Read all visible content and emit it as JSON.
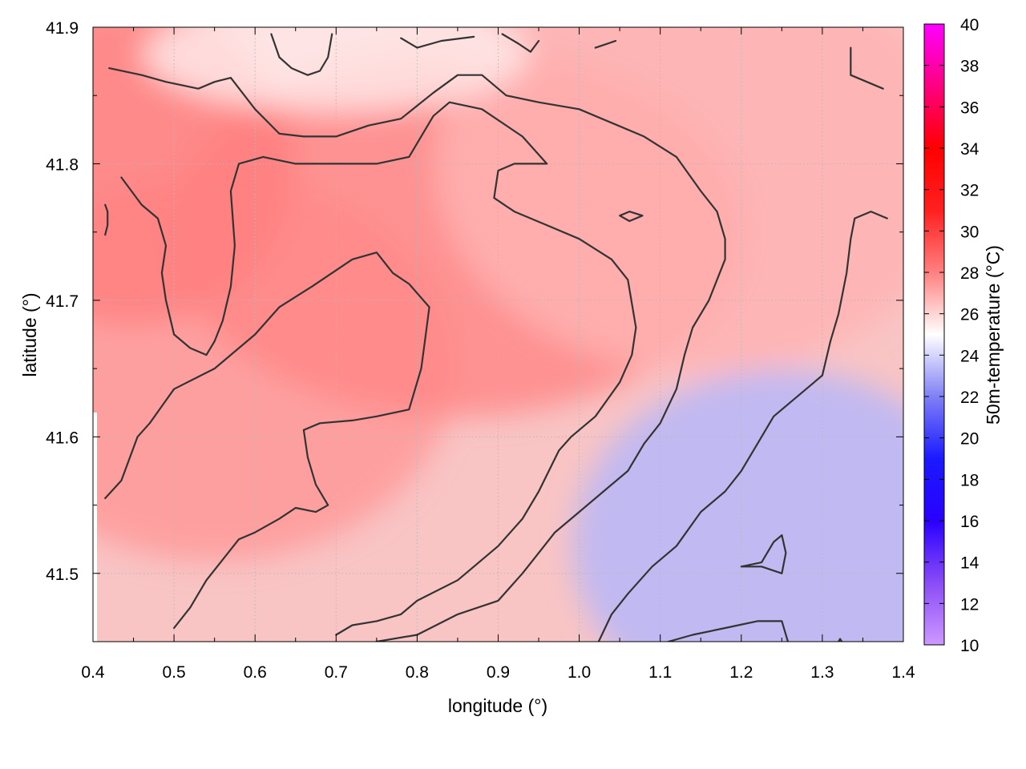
{
  "chart_data": {
    "type": "heatmap",
    "title": "",
    "xlabel": "longitude (°)",
    "ylabel": "latitude (°)",
    "colorbar_label": "50m-temperature (°C)",
    "xlim": [
      0.4,
      1.4
    ],
    "ylim": [
      41.45,
      41.9
    ],
    "x_ticks": [
      "0.4",
      "0.5",
      "0.6",
      "0.7",
      "0.8",
      "0.9",
      "1.0",
      "1.1",
      "1.2",
      "1.3",
      "1.4"
    ],
    "y_ticks": [
      "41.5",
      "41.6",
      "41.7",
      "41.8",
      "41.9"
    ],
    "colorbar_range": [
      10,
      40
    ],
    "colorbar_ticks": [
      "10",
      "12",
      "14",
      "16",
      "18",
      "20",
      "22",
      "24",
      "26",
      "28",
      "30",
      "32",
      "34",
      "36",
      "38",
      "40"
    ],
    "colormap": [
      {
        "value": 10,
        "color": "#cc99ff"
      },
      {
        "value": 13,
        "color": "#8a4cf5"
      },
      {
        "value": 16,
        "color": "#2a00ff"
      },
      {
        "value": 19,
        "color": "#1a1aff"
      },
      {
        "value": 22,
        "color": "#8080f5"
      },
      {
        "value": 25,
        "color": "#ffffff"
      },
      {
        "value": 28,
        "color": "#ff8080"
      },
      {
        "value": 31,
        "color": "#ff2020"
      },
      {
        "value": 34,
        "color": "#ff0000"
      },
      {
        "value": 37,
        "color": "#ff0080"
      },
      {
        "value": 40,
        "color": "#ff00ff"
      }
    ],
    "grid": true,
    "field_levels": [
      {
        "lon": 0.55,
        "lat": 41.65,
        "temp": 27.4
      },
      {
        "lon": 0.85,
        "lat": 41.75,
        "temp": 27.8
      },
      {
        "lon": 0.45,
        "lat": 41.8,
        "temp": 28.0
      },
      {
        "lon": 1.15,
        "lat": 41.8,
        "temp": 26.8
      },
      {
        "lon": 1.25,
        "lat": 41.52,
        "temp": 23.3
      },
      {
        "lon": 0.7,
        "lat": 41.88,
        "temp": 25.5
      }
    ],
    "contours": [
      {
        "id": "c-outer-west",
        "points": [
          [
            0.415,
            41.555
          ],
          [
            0.435,
            41.568
          ],
          [
            0.455,
            41.6
          ],
          [
            0.47,
            41.61
          ],
          [
            0.5,
            41.635
          ],
          [
            0.55,
            41.65
          ],
          [
            0.6,
            41.675
          ],
          [
            0.63,
            41.695
          ],
          [
            0.67,
            41.71
          ],
          [
            0.72,
            41.73
          ],
          [
            0.75,
            41.735
          ],
          [
            0.77,
            41.72
          ],
          [
            0.79,
            41.712
          ],
          [
            0.815,
            41.695
          ],
          [
            0.81,
            41.672
          ],
          [
            0.805,
            41.65
          ],
          [
            0.79,
            41.62
          ],
          [
            0.75,
            41.615
          ],
          [
            0.72,
            41.612
          ],
          [
            0.68,
            41.61
          ],
          [
            0.66,
            41.605
          ],
          [
            0.665,
            41.585
          ],
          [
            0.675,
            41.565
          ],
          [
            0.69,
            41.55
          ],
          [
            0.675,
            41.545
          ],
          [
            0.65,
            41.548
          ],
          [
            0.63,
            41.54
          ],
          [
            0.6,
            41.53
          ],
          [
            0.58,
            41.525
          ],
          [
            0.56,
            41.51
          ],
          [
            0.54,
            41.495
          ],
          [
            0.52,
            41.475
          ],
          [
            0.5,
            41.46
          ]
        ]
      },
      {
        "id": "c-mid",
        "points": [
          [
            0.435,
            41.79
          ],
          [
            0.46,
            41.77
          ],
          [
            0.48,
            41.76
          ],
          [
            0.49,
            41.74
          ],
          [
            0.485,
            41.72
          ],
          [
            0.49,
            41.7
          ],
          [
            0.5,
            41.675
          ],
          [
            0.52,
            41.665
          ],
          [
            0.54,
            41.66
          ],
          [
            0.55,
            41.67
          ],
          [
            0.56,
            41.685
          ],
          [
            0.57,
            41.71
          ],
          [
            0.575,
            41.74
          ],
          [
            0.57,
            41.78
          ],
          [
            0.58,
            41.8
          ],
          [
            0.61,
            41.805
          ],
          [
            0.65,
            41.8
          ],
          [
            0.7,
            41.8
          ],
          [
            0.75,
            41.8
          ],
          [
            0.79,
            41.805
          ],
          [
            0.82,
            41.835
          ],
          [
            0.84,
            41.845
          ],
          [
            0.88,
            41.84
          ],
          [
            0.93,
            41.82
          ],
          [
            0.96,
            41.8
          ],
          [
            0.92,
            41.8
          ],
          [
            0.9,
            41.795
          ],
          [
            0.895,
            41.775
          ],
          [
            0.92,
            41.765
          ],
          [
            0.96,
            41.755
          ],
          [
            1.0,
            41.745
          ],
          [
            1.04,
            41.73
          ],
          [
            1.06,
            41.715
          ],
          [
            1.07,
            41.68
          ],
          [
            1.065,
            41.66
          ],
          [
            1.05,
            41.64
          ],
          [
            1.02,
            41.615
          ],
          [
            0.99,
            41.6
          ],
          [
            0.975,
            41.59
          ],
          [
            0.95,
            41.56
          ],
          [
            0.93,
            41.54
          ],
          [
            0.9,
            41.52
          ],
          [
            0.87,
            41.505
          ],
          [
            0.85,
            41.495
          ],
          [
            0.8,
            41.48
          ],
          [
            0.78,
            41.47
          ],
          [
            0.75,
            41.465
          ],
          [
            0.72,
            41.462
          ],
          [
            0.7,
            41.455
          ]
        ]
      },
      {
        "id": "c-north-ridge",
        "points": [
          [
            0.42,
            41.87
          ],
          [
            0.46,
            41.865
          ],
          [
            0.49,
            41.86
          ],
          [
            0.53,
            41.855
          ],
          [
            0.55,
            41.86
          ],
          [
            0.57,
            41.863
          ],
          [
            0.6,
            41.84
          ],
          [
            0.63,
            41.822
          ],
          [
            0.66,
            41.82
          ],
          [
            0.7,
            41.82
          ],
          [
            0.74,
            41.828
          ],
          [
            0.78,
            41.833
          ],
          [
            0.82,
            41.852
          ],
          [
            0.85,
            41.865
          ],
          [
            0.88,
            41.865
          ],
          [
            0.91,
            41.85
          ],
          [
            0.95,
            41.845
          ],
          [
            1.0,
            41.84
          ],
          [
            1.04,
            41.83
          ],
          [
            1.08,
            41.82
          ],
          [
            1.12,
            41.805
          ],
          [
            1.15,
            41.78
          ],
          [
            1.17,
            41.765
          ],
          [
            1.18,
            41.745
          ],
          [
            1.18,
            41.73
          ],
          [
            1.16,
            41.7
          ],
          [
            1.14,
            41.68
          ],
          [
            1.13,
            41.66
          ],
          [
            1.12,
            41.635
          ],
          [
            1.1,
            41.61
          ],
          [
            1.08,
            41.595
          ],
          [
            1.06,
            41.575
          ],
          [
            1.03,
            41.56
          ],
          [
            1.0,
            41.545
          ],
          [
            0.97,
            41.53
          ],
          [
            0.95,
            41.515
          ],
          [
            0.93,
            41.5
          ],
          [
            0.9,
            41.48
          ],
          [
            0.85,
            41.47
          ],
          [
            0.8,
            41.455
          ],
          [
            0.75,
            41.45
          ],
          [
            0.72,
            41.445
          ],
          [
            0.7,
            41.44
          ]
        ]
      },
      {
        "id": "c-east",
        "points": [
          [
            1.02,
            41.445
          ],
          [
            1.04,
            41.47
          ],
          [
            1.06,
            41.485
          ],
          [
            1.09,
            41.505
          ],
          [
            1.12,
            41.52
          ],
          [
            1.15,
            41.545
          ],
          [
            1.18,
            41.56
          ],
          [
            1.2,
            41.575
          ],
          [
            1.22,
            41.595
          ],
          [
            1.24,
            41.615
          ],
          [
            1.26,
            41.625
          ],
          [
            1.28,
            41.635
          ],
          [
            1.3,
            41.645
          ],
          [
            1.31,
            41.67
          ],
          [
            1.32,
            41.69
          ],
          [
            1.33,
            41.72
          ],
          [
            1.335,
            41.745
          ],
          [
            1.34,
            41.76
          ],
          [
            1.36,
            41.765
          ],
          [
            1.38,
            41.76
          ]
        ]
      },
      {
        "id": "c-east-small",
        "points": [
          [
            1.11,
            41.45
          ],
          [
            1.14,
            41.455
          ],
          [
            1.18,
            41.46
          ],
          [
            1.22,
            41.465
          ],
          [
            1.25,
            41.465
          ],
          [
            1.26,
            41.445
          ]
        ]
      },
      {
        "id": "c-loop-se",
        "points": [
          [
            1.2,
            41.505
          ],
          [
            1.225,
            41.508
          ],
          [
            1.24,
            41.523
          ],
          [
            1.25,
            41.528
          ],
          [
            1.255,
            41.515
          ],
          [
            1.25,
            41.5
          ],
          [
            1.225,
            41.505
          ],
          [
            1.2,
            41.505
          ]
        ]
      },
      {
        "id": "c-small-ring",
        "points": [
          [
            1.05,
            41.762
          ],
          [
            1.062,
            41.765
          ],
          [
            1.078,
            41.762
          ],
          [
            1.062,
            41.758
          ],
          [
            1.05,
            41.762
          ]
        ]
      },
      {
        "id": "c-west-stub",
        "points": [
          [
            0.415,
            41.77
          ],
          [
            0.418,
            41.765
          ],
          [
            0.418,
            41.755
          ],
          [
            0.415,
            41.748
          ]
        ]
      },
      {
        "id": "c-ne-corner",
        "points": [
          [
            1.335,
            41.885
          ],
          [
            1.335,
            41.865
          ],
          [
            1.355,
            41.86
          ],
          [
            1.375,
            41.855
          ]
        ]
      },
      {
        "id": "c-top-1",
        "points": [
          [
            0.62,
            41.895
          ],
          [
            0.63,
            41.878
          ],
          [
            0.645,
            41.87
          ],
          [
            0.665,
            41.865
          ],
          [
            0.68,
            41.868
          ],
          [
            0.69,
            41.878
          ],
          [
            0.695,
            41.895
          ]
        ]
      },
      {
        "id": "c-top-2",
        "points": [
          [
            0.78,
            41.892
          ],
          [
            0.8,
            41.885
          ],
          [
            0.83,
            41.89
          ],
          [
            0.87,
            41.893
          ]
        ]
      },
      {
        "id": "c-top-3",
        "points": [
          [
            0.905,
            41.895
          ],
          [
            0.925,
            41.888
          ],
          [
            0.94,
            41.882
          ],
          [
            0.95,
            41.89
          ]
        ]
      },
      {
        "id": "c-top-4",
        "points": [
          [
            1.02,
            41.885
          ],
          [
            1.03,
            41.887
          ],
          [
            1.045,
            41.89
          ]
        ]
      },
      {
        "id": "c-mark",
        "points": [
          [
            1.318,
            41.448
          ],
          [
            1.322,
            41.452
          ],
          [
            1.326,
            41.448
          ]
        ]
      }
    ]
  }
}
